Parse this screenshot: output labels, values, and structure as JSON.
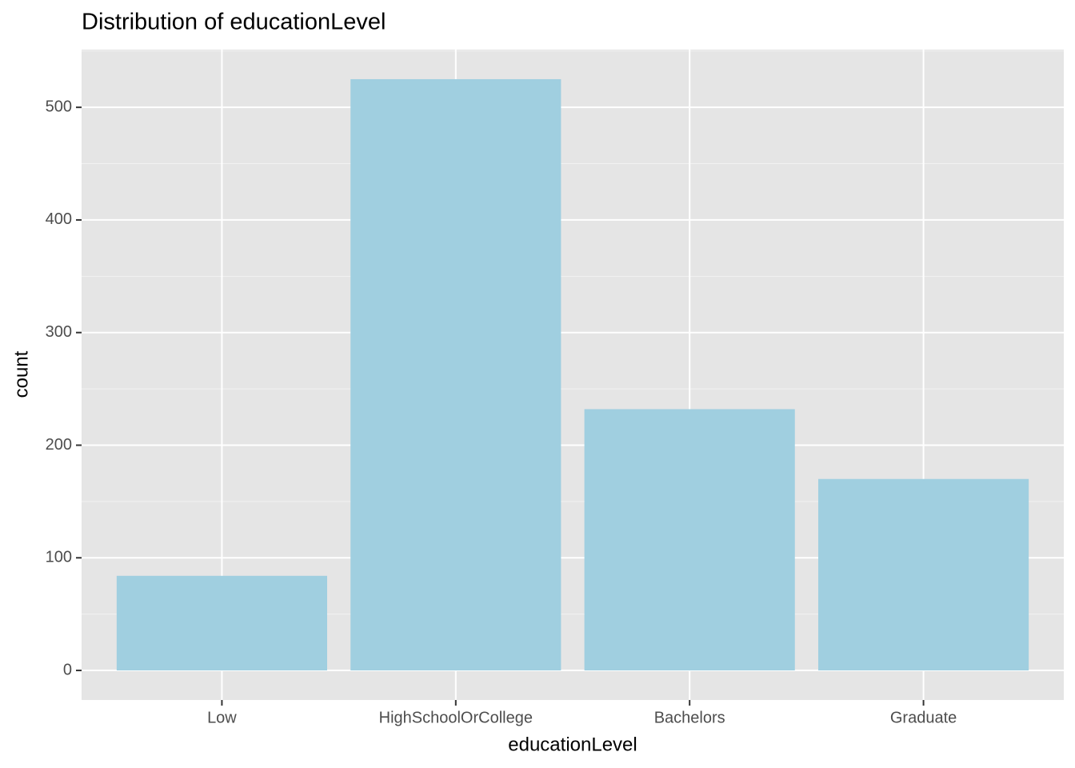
{
  "chart_data": {
    "type": "bar",
    "title": "Distribution of educationLevel",
    "x_label": "educationLevel",
    "y_label": "count",
    "categories": [
      "Low",
      "HighSchoolOrCollege",
      "Bachelors",
      "Graduate"
    ],
    "values": [
      84,
      525,
      232,
      170
    ],
    "color": "#a0cfe0",
    "ylim": [
      -26.25,
      551.25
    ],
    "yticks": [
      0,
      100,
      200,
      300,
      400,
      500
    ],
    "grid": true
  }
}
